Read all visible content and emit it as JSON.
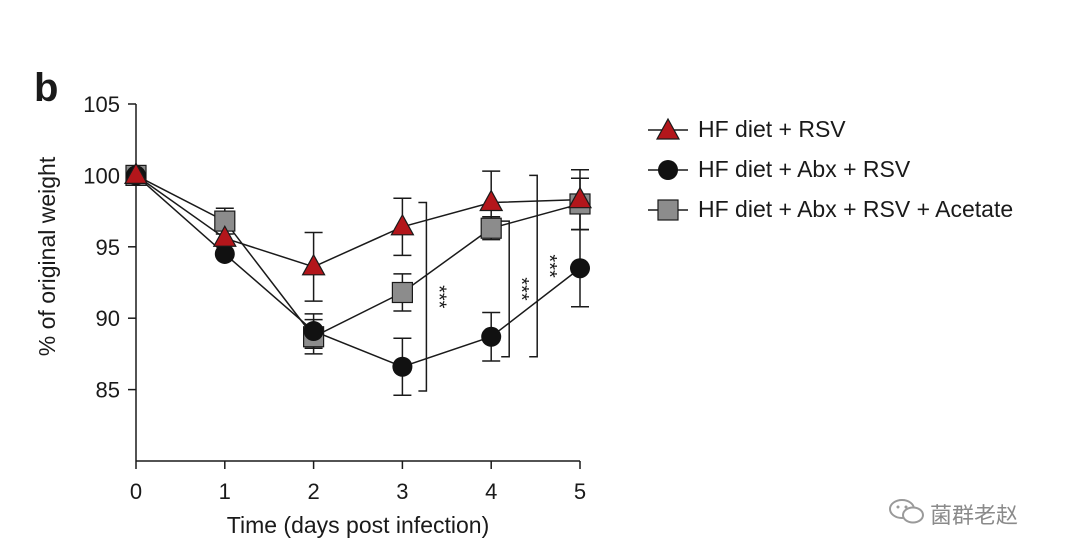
{
  "panel_label": "b",
  "watermark": {
    "text": "菌群老赵",
    "icon": "wechat-icon"
  },
  "chart_data": {
    "type": "line",
    "title": "",
    "xlabel": "Time (days post infection)",
    "ylabel": "% of original weight",
    "xlim": [
      0,
      5
    ],
    "ylim": [
      80,
      105
    ],
    "xticks": [
      0,
      1,
      2,
      3,
      4,
      5
    ],
    "yticks": [
      85,
      90,
      95,
      100,
      105
    ],
    "x": [
      0,
      1,
      2,
      3,
      4,
      5
    ],
    "legend_position": "top-right",
    "series": [
      {
        "name": "HF diet + RSV",
        "marker": "triangle",
        "color": "#b3161b",
        "values": [
          100,
          95.6,
          93.6,
          96.4,
          98.1,
          98.3
        ],
        "errors": [
          0,
          0,
          2.4,
          2.0,
          2.2,
          2.1
        ]
      },
      {
        "name": "HF diet + Abx + RSV",
        "marker": "circle",
        "color": "#111111",
        "values": [
          100,
          94.5,
          89.1,
          86.6,
          88.7,
          93.5
        ],
        "errors": [
          0,
          0,
          1.2,
          2.0,
          1.7,
          2.7
        ]
      },
      {
        "name": "HF diet + Abx + RSV + Acetate",
        "marker": "square",
        "color": "#8c8c8c",
        "values": [
          100,
          96.8,
          88.7,
          91.8,
          96.3,
          98.0
        ],
        "errors": [
          0,
          0.9,
          1.2,
          1.3,
          0.8,
          1.8
        ]
      }
    ],
    "annotations": [
      {
        "text": "***",
        "x": 3,
        "between": [
          "HF diet + RSV",
          "HF diet + Abx + RSV"
        ]
      },
      {
        "text": "***",
        "x": 4,
        "between": [
          "HF diet + Abx + RSV + Acetate",
          "HF diet + Abx + RSV"
        ]
      },
      {
        "text": "***",
        "x": 4,
        "between": [
          "HF diet + RSV",
          "HF diet + Abx + RSV"
        ]
      }
    ]
  }
}
